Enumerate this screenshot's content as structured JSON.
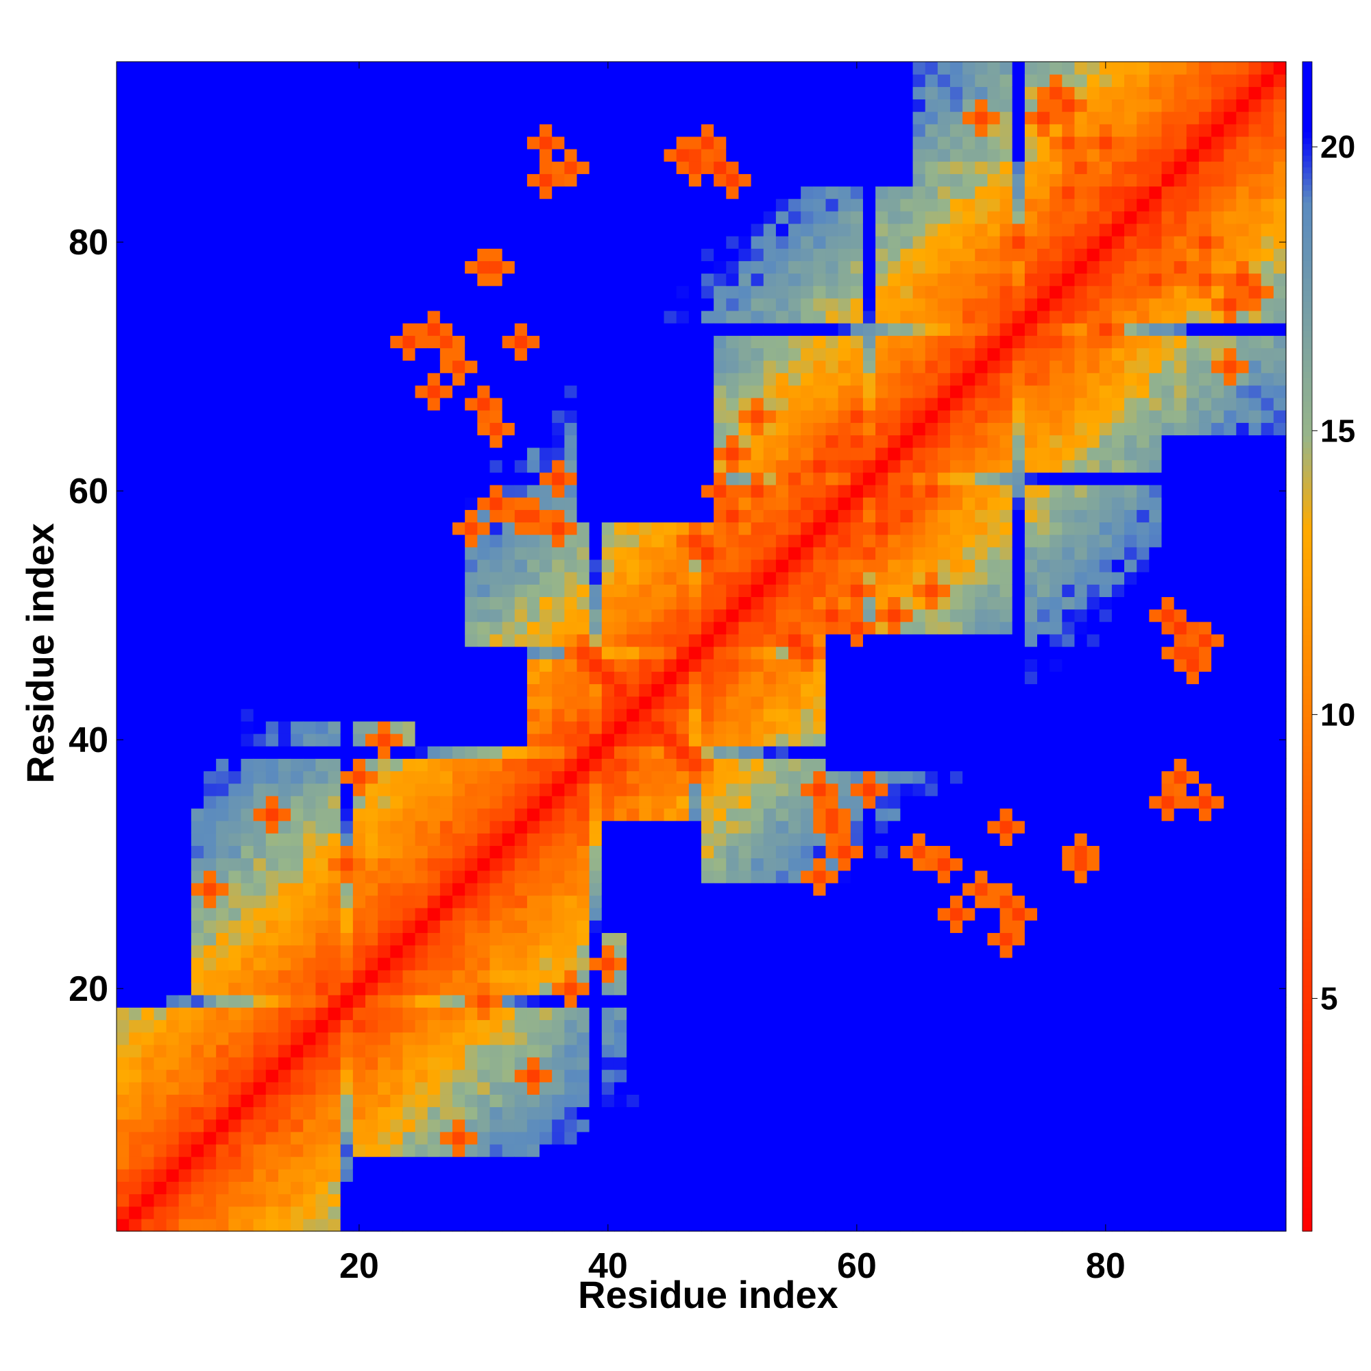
{
  "chart_data": {
    "type": "heatmap",
    "title": "",
    "xlabel": "Residue index",
    "ylabel": "Residue index",
    "n": 94,
    "xlim": [
      0.5,
      94.5
    ],
    "ylim": [
      0.5,
      94.5
    ],
    "xticks": [
      20,
      40,
      60,
      80
    ],
    "yticks": [
      20,
      40,
      60,
      80
    ],
    "colorbar": {
      "range": [
        0.9,
        21.5
      ],
      "ticks": [
        5,
        10,
        15,
        20
      ],
      "colors": [
        "#ff0000",
        "#ff4000",
        "#ff8000",
        "#ffaa00",
        "#97b58a",
        "#5a8ac0",
        "#0000ff"
      ],
      "stops": [
        0,
        0.25,
        0.45,
        0.6,
        0.68,
        0.88,
        0.94
      ]
    },
    "map_description_values": {
      "contact_cutoff": 21.3,
      "backbone_step": 3.8,
      "band_max": 15
    },
    "helix_contacts": [
      [
        1,
        18,
        4.8
      ],
      [
        20,
        24,
        5.0
      ],
      [
        25,
        38,
        5.2
      ],
      [
        40,
        46,
        5.0
      ],
      [
        48,
        60,
        4.8
      ],
      [
        62,
        72,
        5.0
      ],
      [
        74,
        94,
        4.8
      ]
    ],
    "long_range_contacts": [
      [
        45,
        40,
        4.5
      ],
      [
        46,
        39,
        4.8
      ],
      [
        47,
        38,
        6.0
      ],
      [
        44,
        41,
        4.0
      ],
      [
        55,
        48,
        5.0
      ],
      [
        56,
        47,
        6.0
      ],
      [
        58,
        50,
        5.5
      ],
      [
        60,
        52,
        6.0
      ],
      [
        62,
        57,
        5.0
      ],
      [
        64,
        58,
        6.0
      ],
      [
        66,
        52,
        6.5
      ],
      [
        85,
        50,
        6.0
      ],
      [
        86,
        49,
        5.5
      ],
      [
        87,
        47,
        6.5
      ],
      [
        78,
        76,
        6.0
      ],
      [
        80,
        73,
        6.0
      ],
      [
        77,
        84,
        6.0
      ],
      [
        78,
        86,
        6.5
      ],
      [
        80,
        88,
        6.0
      ],
      [
        84,
        80,
        6.0
      ],
      [
        86,
        78,
        6.5
      ],
      [
        88,
        77,
        6.5
      ],
      [
        90,
        75,
        6.0
      ],
      [
        28,
        8,
        6.5
      ],
      [
        30,
        19,
        6.5
      ],
      [
        34,
        13,
        6.0
      ],
      [
        37,
        20,
        6.5
      ],
      [
        40,
        22,
        6.5
      ],
      [
        57,
        36,
        6.0
      ],
      [
        58,
        33,
        6.5
      ],
      [
        65,
        31,
        6.5
      ],
      [
        67,
        30,
        6.0
      ],
      [
        70,
        28,
        6.5
      ],
      [
        73,
        26,
        6.0
      ],
      [
        78,
        31,
        6.5
      ],
      [
        85,
        35,
        6.0
      ],
      [
        86,
        37,
        6.5
      ],
      [
        50,
        63,
        6.0
      ],
      [
        49,
        60,
        6.0
      ],
      [
        52,
        66,
        6.5
      ],
      [
        36,
        61,
        6.0
      ],
      [
        34,
        58,
        6.5
      ],
      [
        31,
        59,
        6.0
      ],
      [
        29,
        57,
        6.5
      ],
      [
        26,
        68,
        6.0
      ],
      [
        24,
        72,
        6.0
      ],
      [
        27,
        72,
        6.5
      ],
      [
        33,
        72,
        6.0
      ],
      [
        30,
        78,
        6.5
      ],
      [
        35,
        88,
        6.0
      ],
      [
        37,
        86,
        6.5
      ],
      [
        48,
        88,
        6.0
      ],
      [
        47,
        86,
        6.5
      ],
      [
        46,
        87,
        6.0
      ],
      [
        77,
        91,
        6.0
      ],
      [
        76,
        92,
        6.5
      ],
      [
        80,
        88,
        6.0
      ],
      [
        82,
        86,
        6.5
      ],
      [
        84,
        85,
        6.0
      ],
      [
        70,
        90,
        6.5
      ],
      [
        66,
        60,
        6.0
      ],
      [
        55,
        61,
        6.5
      ],
      [
        60,
        64,
        6.0
      ]
    ],
    "far_regions": [
      [
        1,
        6,
        20,
        94
      ],
      [
        1,
        10,
        40,
        94
      ],
      [
        88,
        94,
        1,
        30
      ],
      [
        25,
        33,
        40,
        47
      ],
      [
        12,
        28,
        42,
        60
      ],
      [
        60,
        94,
        1,
        12
      ],
      [
        42,
        62,
        18,
        28
      ],
      [
        58,
        72,
        38,
        48
      ],
      [
        85,
        94,
        55,
        64
      ],
      [
        64,
        94,
        10,
        22
      ]
    ]
  }
}
